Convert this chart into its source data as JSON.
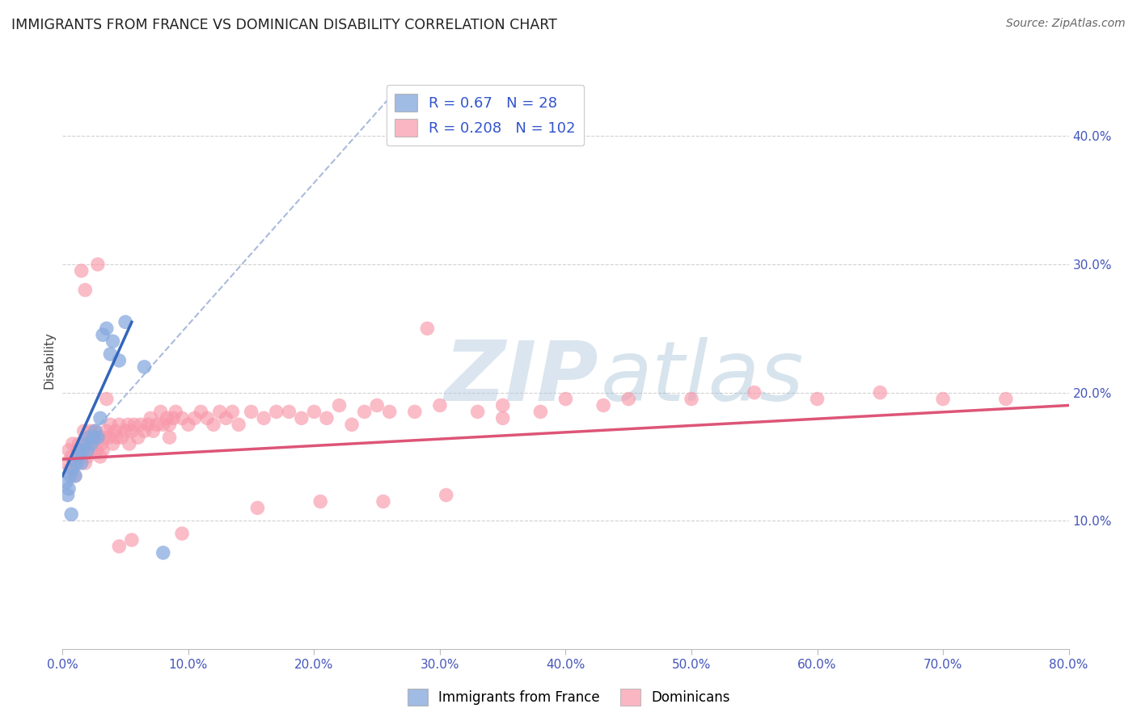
{
  "title": "IMMIGRANTS FROM FRANCE VS DOMINICAN DISABILITY CORRELATION CHART",
  "source": "Source: ZipAtlas.com",
  "ylabel": "Disability",
  "xlim": [
    0.0,
    80.0
  ],
  "ylim": [
    0.0,
    45.0
  ],
  "x_ticks": [
    0.0,
    10.0,
    20.0,
    30.0,
    40.0,
    50.0,
    60.0,
    70.0,
    80.0
  ],
  "y_ticks_right": [
    10.0,
    20.0,
    30.0,
    40.0
  ],
  "grid_color": "#cccccc",
  "blue_R": 0.67,
  "blue_N": 28,
  "pink_R": 0.208,
  "pink_N": 102,
  "blue_color": "#88aade",
  "pink_color": "#f898aa",
  "blue_line_color": "#3366bb",
  "pink_line_color": "#dd5577",
  "dashed_line_color": "#aabbdd",
  "legend_label_blue": "Immigrants from France",
  "legend_label_pink": "Dominicans",
  "blue_scatter_x": [
    0.3,
    0.5,
    0.6,
    0.8,
    1.0,
    1.1,
    1.2,
    1.4,
    1.5,
    1.6,
    1.8,
    2.0,
    2.1,
    2.3,
    2.5,
    2.6,
    2.8,
    3.0,
    3.2,
    3.5,
    3.8,
    4.0,
    4.5,
    5.0,
    0.4,
    0.7,
    6.5,
    8.0
  ],
  "blue_scatter_y": [
    13.0,
    12.5,
    13.5,
    14.0,
    13.5,
    14.5,
    15.0,
    15.5,
    14.5,
    15.5,
    16.0,
    15.5,
    16.5,
    16.0,
    16.5,
    17.0,
    16.5,
    18.0,
    24.5,
    25.0,
    23.0,
    24.0,
    22.5,
    25.5,
    12.0,
    10.5,
    22.0,
    7.5
  ],
  "pink_scatter_x": [
    0.3,
    0.5,
    0.6,
    0.7,
    0.8,
    1.0,
    1.1,
    1.2,
    1.3,
    1.5,
    1.6,
    1.7,
    1.8,
    2.0,
    2.1,
    2.2,
    2.3,
    2.5,
    2.6,
    2.7,
    2.8,
    3.0,
    3.1,
    3.2,
    3.3,
    3.5,
    3.7,
    3.8,
    4.0,
    4.2,
    4.3,
    4.5,
    4.7,
    5.0,
    5.2,
    5.3,
    5.5,
    5.7,
    6.0,
    6.2,
    6.5,
    6.8,
    7.0,
    7.2,
    7.5,
    7.8,
    8.0,
    8.3,
    8.5,
    8.8,
    9.0,
    9.5,
    10.0,
    10.5,
    11.0,
    11.5,
    12.0,
    12.5,
    13.0,
    13.5,
    14.0,
    15.0,
    16.0,
    17.0,
    18.0,
    19.0,
    20.0,
    21.0,
    22.0,
    23.0,
    24.0,
    25.0,
    26.0,
    28.0,
    30.0,
    33.0,
    35.0,
    38.0,
    40.0,
    43.0,
    45.0,
    50.0,
    55.0,
    60.0,
    65.0,
    70.0,
    75.0,
    8.5,
    29.0,
    35.0,
    4.5,
    9.5,
    15.5,
    20.5,
    25.5,
    30.5,
    1.5,
    3.5,
    2.8,
    1.8,
    5.5
  ],
  "pink_scatter_y": [
    14.5,
    15.5,
    14.0,
    15.0,
    16.0,
    13.5,
    14.5,
    15.5,
    16.0,
    15.0,
    16.0,
    17.0,
    14.5,
    15.0,
    16.5,
    17.0,
    15.5,
    16.5,
    17.0,
    15.5,
    16.5,
    15.0,
    16.0,
    15.5,
    16.5,
    17.0,
    16.5,
    17.5,
    16.0,
    17.0,
    16.5,
    17.5,
    16.5,
    17.0,
    17.5,
    16.0,
    17.0,
    17.5,
    16.5,
    17.5,
    17.0,
    17.5,
    18.0,
    17.0,
    17.5,
    18.5,
    17.5,
    18.0,
    17.5,
    18.0,
    18.5,
    18.0,
    17.5,
    18.0,
    18.5,
    18.0,
    17.5,
    18.5,
    18.0,
    18.5,
    17.5,
    18.5,
    18.0,
    18.5,
    18.5,
    18.0,
    18.5,
    18.0,
    19.0,
    17.5,
    18.5,
    19.0,
    18.5,
    18.5,
    19.0,
    18.5,
    19.0,
    18.5,
    19.5,
    19.0,
    19.5,
    19.5,
    20.0,
    19.5,
    20.0,
    19.5,
    19.5,
    16.5,
    25.0,
    18.0,
    8.0,
    9.0,
    11.0,
    11.5,
    11.5,
    12.0,
    29.5,
    19.5,
    30.0,
    28.0,
    8.5
  ],
  "blue_line_x0": 0.0,
  "blue_line_y0": 13.5,
  "blue_line_x1": 5.5,
  "blue_line_y1": 25.5,
  "dashed_x0": 2.5,
  "dashed_y0": 17.0,
  "dashed_x1": 26.0,
  "dashed_y1": 43.0,
  "pink_line_x0": 0.0,
  "pink_line_y0": 14.8,
  "pink_line_x1": 80.0,
  "pink_line_y1": 19.0
}
